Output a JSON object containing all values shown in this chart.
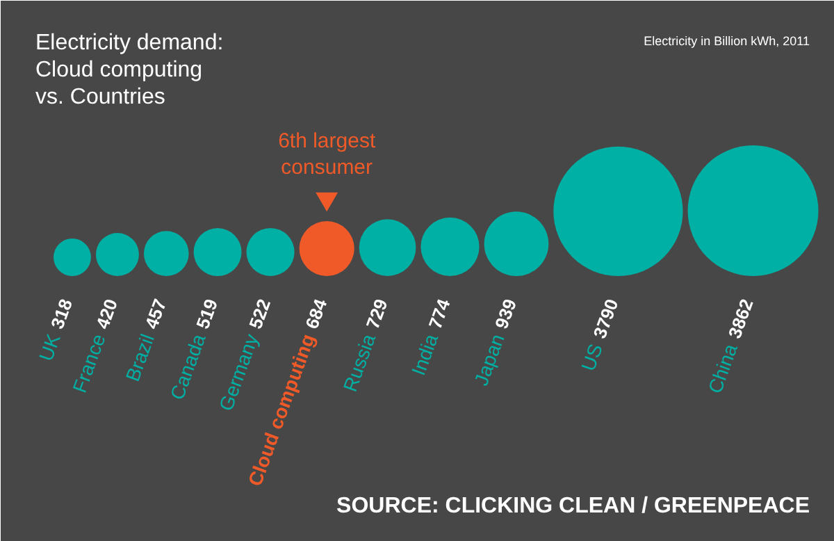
{
  "chart_data": {
    "type": "other",
    "title": "Electricity demand:\nCloud computing\nvs. Countries",
    "subtitle": "Electricity in Billion kWh, 2011",
    "categories": [
      "UK",
      "France",
      "Brazil",
      "Canada",
      "Germany",
      "Cloud computing",
      "Russia",
      "India",
      "Japan",
      "US",
      "China"
    ],
    "values": [
      318,
      420,
      457,
      519,
      522,
      684,
      729,
      774,
      939,
      3790,
      3862
    ],
    "colors": [
      "#00b0a4",
      "#00b0a4",
      "#00b0a4",
      "#00b0a4",
      "#00b0a4",
      "#f05a28",
      "#00b0a4",
      "#00b0a4",
      "#00b0a4",
      "#00b0a4",
      "#00b0a4"
    ],
    "data_labels": true,
    "annotations": [
      {
        "text": "6th largest\nconsumer",
        "x": "Cloud computing"
      },
      "SOURCE: CLICKING CLEAN / GREENPEACE"
    ]
  }
}
